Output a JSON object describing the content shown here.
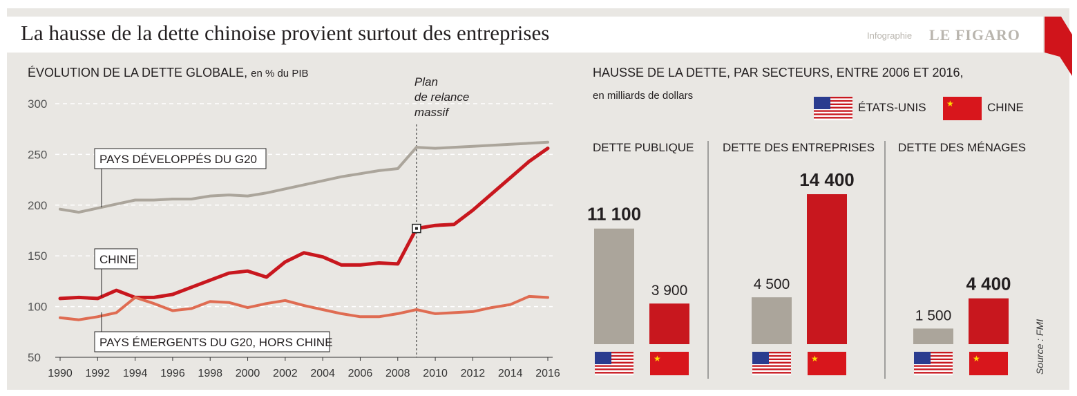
{
  "header": {
    "title": "La hausse de la dette chinoise provient surtout des entreprises",
    "brand_prefix": "Infographie",
    "brand": "LE FIGARO"
  },
  "colors": {
    "grey": "#aba59b",
    "red": "#c8171e",
    "orange": "#df6c52",
    "background": "#e9e7e3"
  },
  "chart_data": [
    {
      "type": "line",
      "title": "ÉVOLUTION DE LA DETTE GLOBALE,",
      "subtitle": "en % du PIB",
      "x": [
        1990,
        1991,
        1992,
        1993,
        1994,
        1995,
        1996,
        1997,
        1998,
        1999,
        2000,
        2001,
        2002,
        2003,
        2004,
        2005,
        2006,
        2007,
        2008,
        2009,
        2010,
        2011,
        2012,
        2013,
        2014,
        2015,
        2016
      ],
      "x_ticks": [
        "1990",
        "1992",
        "1994",
        "1996",
        "1998",
        "2000",
        "2002",
        "2004",
        "2006",
        "2008",
        "2010",
        "2012",
        "2014",
        "2016"
      ],
      "y_ticks": [
        "300",
        "250",
        "200",
        "150",
        "100",
        "50"
      ],
      "ylim": [
        50,
        300
      ],
      "grid": true,
      "annotation": {
        "x": 2009,
        "lines": [
          "Plan",
          "de relance",
          "massif"
        ]
      },
      "series": [
        {
          "name": "PAYS DÉVELOPPÉS DU G20",
          "color": "#aba59b",
          "values": [
            196,
            193,
            197,
            201,
            205,
            205,
            206,
            206,
            209,
            210,
            209,
            212,
            216,
            220,
            224,
            228,
            231,
            234,
            236,
            257,
            256,
            257,
            258,
            259,
            260,
            261,
            262
          ]
        },
        {
          "name": "CHINE",
          "color": "#c8171e",
          "values": [
            108,
            109,
            108,
            116,
            109,
            109,
            112,
            119,
            126,
            133,
            135,
            129,
            144,
            153,
            149,
            141,
            141,
            143,
            142,
            177,
            180,
            181,
            195,
            211,
            227,
            243,
            256
          ]
        },
        {
          "name": "PAYS ÉMERGENTS DU G20, HORS CHINE",
          "color": "#df6c52",
          "values": [
            89,
            87,
            90,
            94,
            109,
            103,
            96,
            98,
            105,
            104,
            99,
            103,
            106,
            101,
            97,
            93,
            90,
            90,
            93,
            97,
            93,
            94,
            95,
            99,
            102,
            110,
            109
          ]
        }
      ]
    },
    {
      "type": "bar",
      "title": "HAUSSE DE LA DETTE, PAR SECTEURS, ENTRE 2006 ET 2016,",
      "subtitle": "en milliards de dollars",
      "legend": [
        {
          "label": "ÉTATS-UNIS",
          "flag": "us-flag-icon",
          "color": "#aba59b"
        },
        {
          "label": "CHINE",
          "flag": "china-flag-icon",
          "color": "#c8171e"
        }
      ],
      "categories": [
        "DETTE PUBLIQUE",
        "DETTE DES ENTREPRISES",
        "DETTE DES MÉNAGES"
      ],
      "series": [
        {
          "name": "ÉTATS-UNIS",
          "values": [
            11100,
            4500,
            1500
          ],
          "labels": [
            "11 100",
            "4 500",
            "1 500"
          ],
          "bold": [
            true,
            false,
            false
          ]
        },
        {
          "name": "CHINE",
          "values": [
            3900,
            14400,
            4400
          ],
          "labels": [
            "3 900",
            "14 400",
            "4 400"
          ],
          "bold": [
            false,
            true,
            true
          ]
        }
      ],
      "source": "Source : FMI"
    }
  ]
}
